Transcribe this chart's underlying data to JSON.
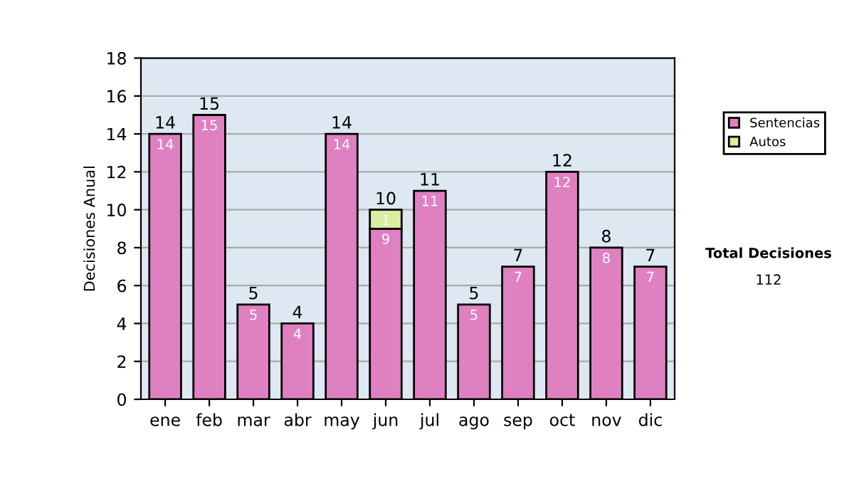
{
  "chart_data": {
    "type": "bar",
    "stacked": true,
    "ylabel": "Decisiones Anual",
    "categories": [
      "ene",
      "feb",
      "mar",
      "abr",
      "may",
      "jun",
      "jul",
      "ago",
      "sep",
      "oct",
      "nov",
      "dic"
    ],
    "series": [
      {
        "name": "Sentencias",
        "color": "#df80c0",
        "values": [
          14,
          15,
          5,
          4,
          14,
          9,
          11,
          5,
          7,
          12,
          8,
          7
        ]
      },
      {
        "name": "Autos",
        "color": "#d8eea0",
        "values": [
          null,
          null,
          null,
          null,
          null,
          1,
          null,
          null,
          null,
          null,
          null,
          null
        ]
      }
    ],
    "data_labels": true,
    "totals": [
      "14",
      "15",
      "5",
      "4",
      "14",
      "10",
      "11",
      "5",
      "7",
      "12",
      "8",
      "7"
    ],
    "ylim": [
      0,
      18
    ],
    "yticks": [
      0,
      2,
      4,
      6,
      8,
      10,
      12,
      14,
      16,
      18
    ],
    "grid": "y",
    "legend": "right",
    "annotations": [
      "Total Decisiones",
      "112"
    ]
  }
}
